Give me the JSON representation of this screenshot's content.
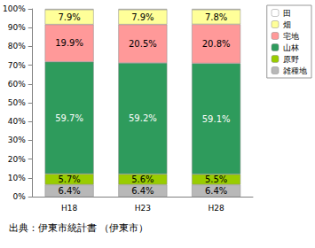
{
  "chart_data": {
    "type": "bar",
    "stacked": true,
    "data_labels": true,
    "grid": false,
    "legend": "top-right",
    "annotations": [
      "出典：伊東市統計書 （伊東市）"
    ],
    "categories": [
      "H18",
      "H23",
      "H28"
    ],
    "ylim": [
      0,
      100
    ],
    "yticks": [
      {
        "value": 0,
        "label": "0%"
      },
      {
        "value": 10,
        "label": "10%"
      },
      {
        "value": 20,
        "label": "20%"
      },
      {
        "value": 30,
        "label": "30%"
      },
      {
        "value": 40,
        "label": "40%"
      },
      {
        "value": 50,
        "label": "50%"
      },
      {
        "value": 60,
        "label": "60%"
      },
      {
        "value": 70,
        "label": "70%"
      },
      {
        "value": 80,
        "label": "80%"
      },
      {
        "value": 90,
        "label": "90%"
      },
      {
        "value": 100,
        "label": "100%"
      }
    ],
    "series": [
      {
        "name": "田",
        "color": "#ffffff",
        "values": [
          0.4,
          0.4,
          0.4
        ],
        "value_labels": [
          null,
          null,
          null
        ]
      },
      {
        "name": "畑",
        "color": "#ffff99",
        "values": [
          7.9,
          7.9,
          7.8
        ],
        "value_labels": [
          "7.9%",
          "7.9%",
          "7.8%"
        ]
      },
      {
        "name": "宅地",
        "color": "#ff9999",
        "values": [
          19.9,
          20.5,
          20.8
        ],
        "value_labels": [
          "19.9%",
          "20.5%",
          "20.8%"
        ]
      },
      {
        "name": "山林",
        "color": "#2e9b5c",
        "values": [
          59.7,
          59.2,
          59.1
        ],
        "value_labels": [
          "59.7%",
          "59.2%",
          "59.1%"
        ]
      },
      {
        "name": "原野",
        "color": "#99cc00",
        "values": [
          5.7,
          5.6,
          5.5
        ],
        "value_labels": [
          "5.7%",
          "5.6%",
          "5.5%"
        ]
      },
      {
        "name": "雑種地",
        "color": "#b8b8b8",
        "values": [
          6.4,
          6.4,
          6.4
        ],
        "value_labels": [
          "6.4%",
          "6.4%",
          "6.4%"
        ]
      }
    ]
  }
}
